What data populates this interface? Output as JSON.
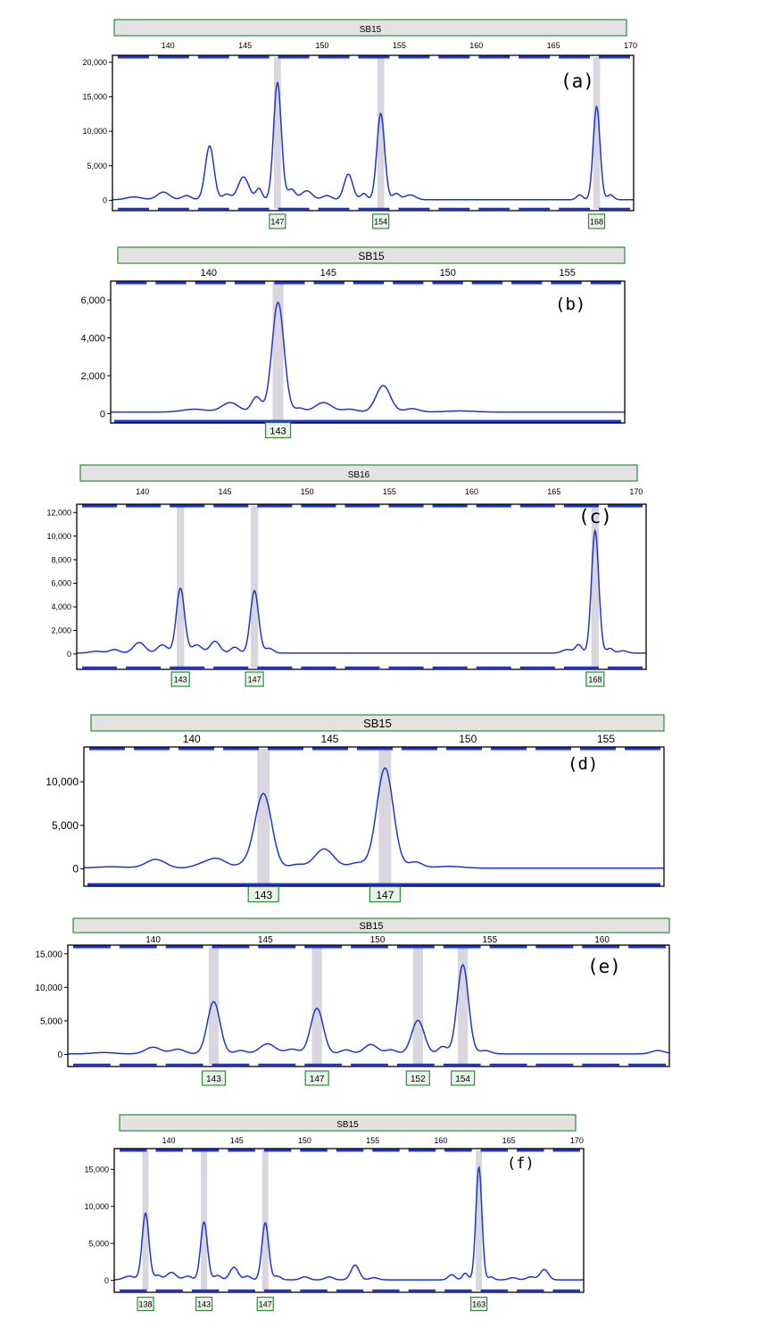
{
  "colors": {
    "trace": "#1f33d6",
    "bin_highlight": "#d9d6df",
    "locus_bar": "#e3e3e3",
    "locus_border": "#2e8b3c",
    "marker_box_border": "#2e8b3c",
    "marker_box_fill": "#e9f5e9",
    "bin_strip": "#1f33d6"
  },
  "chart_data": [
    {
      "type": "line",
      "panel_label": "(a)",
      "locus": "SB15",
      "x_ticks": [
        140,
        145,
        150,
        155,
        160,
        165,
        170
      ],
      "x_tick_labels": [
        "140",
        "145",
        "150",
        "155",
        "160",
        "165",
        "170"
      ],
      "y_ticks": [
        0,
        5000,
        10000,
        15000,
        20000
      ],
      "y_tick_labels": [
        "0",
        "5,000",
        "10,000",
        "15,000",
        "20,000"
      ],
      "xlim": [
        136.4,
        170.2
      ],
      "ylim": [
        -1500,
        21000
      ],
      "peaks": [
        {
          "x": 137.8,
          "y": 400,
          "w": 0.5
        },
        {
          "x": 139.7,
          "y": 1100,
          "w": 0.4
        },
        {
          "x": 141.2,
          "y": 600,
          "w": 0.3
        },
        {
          "x": 142.7,
          "y": 7800,
          "w": 0.28
        },
        {
          "x": 143.8,
          "y": 800,
          "w": 0.25
        },
        {
          "x": 144.9,
          "y": 3300,
          "w": 0.35
        },
        {
          "x": 145.9,
          "y": 1600,
          "w": 0.2
        },
        {
          "x": 147.1,
          "y": 17000,
          "w": 0.25
        },
        {
          "x": 148.0,
          "y": 1500,
          "w": 0.25
        },
        {
          "x": 149.0,
          "y": 1300,
          "w": 0.35
        },
        {
          "x": 150.3,
          "y": 600,
          "w": 0.3
        },
        {
          "x": 151.7,
          "y": 3700,
          "w": 0.28
        },
        {
          "x": 152.7,
          "y": 900,
          "w": 0.2
        },
        {
          "x": 153.8,
          "y": 12500,
          "w": 0.25
        },
        {
          "x": 154.8,
          "y": 900,
          "w": 0.22
        },
        {
          "x": 155.7,
          "y": 700,
          "w": 0.35
        },
        {
          "x": 166.7,
          "y": 700,
          "w": 0.2
        },
        {
          "x": 167.8,
          "y": 13500,
          "w": 0.22
        },
        {
          "x": 168.7,
          "y": 700,
          "w": 0.2
        }
      ],
      "called_alleles": [
        "147",
        "154",
        "168"
      ],
      "called_allele_x": [
        147.1,
        153.8,
        167.8
      ]
    },
    {
      "type": "line",
      "panel_label": "(b)",
      "locus": "SB15",
      "x_ticks": [
        140,
        145,
        150,
        155
      ],
      "x_tick_labels": [
        "140",
        "145",
        "150",
        "155"
      ],
      "y_ticks": [
        0,
        2000,
        4000,
        6000
      ],
      "y_tick_labels": [
        "0",
        "2,000",
        "4,000",
        "6,000"
      ],
      "xlim": [
        135.9,
        157.4
      ],
      "ylim": [
        -500,
        7000
      ],
      "peaks": [
        {
          "x": 139.4,
          "y": 150,
          "w": 0.5
        },
        {
          "x": 140.9,
          "y": 500,
          "w": 0.35
        },
        {
          "x": 142.0,
          "y": 800,
          "w": 0.2
        },
        {
          "x": 142.9,
          "y": 5800,
          "w": 0.25
        },
        {
          "x": 143.8,
          "y": 200,
          "w": 0.2
        },
        {
          "x": 144.8,
          "y": 500,
          "w": 0.35
        },
        {
          "x": 145.9,
          "y": 150,
          "w": 0.3
        },
        {
          "x": 147.3,
          "y": 1400,
          "w": 0.3
        },
        {
          "x": 148.5,
          "y": 180,
          "w": 0.3
        },
        {
          "x": 150.5,
          "y": 60,
          "w": 0.6
        }
      ],
      "called_alleles": [
        "143"
      ],
      "called_allele_x": [
        142.9
      ]
    },
    {
      "type": "line",
      "panel_label": "(c)",
      "locus": "SB16",
      "x_ticks": [
        140,
        145,
        150,
        155,
        160,
        165,
        170
      ],
      "x_tick_labels": [
        "140",
        "145",
        "150",
        "155",
        "160",
        "165",
        "170"
      ],
      "y_ticks": [
        0,
        2000,
        4000,
        6000,
        8000,
        10000,
        12000
      ],
      "y_tick_labels": [
        "0",
        "2,000",
        "4,000",
        "6,000",
        "8,000",
        "10,000",
        "12,000"
      ],
      "xlim": [
        136.0,
        170.6
      ],
      "ylim": [
        -1300,
        12700
      ],
      "peaks": [
        {
          "x": 137.2,
          "y": 150,
          "w": 0.4
        },
        {
          "x": 138.3,
          "y": 300,
          "w": 0.3
        },
        {
          "x": 139.8,
          "y": 900,
          "w": 0.35
        },
        {
          "x": 141.2,
          "y": 700,
          "w": 0.3
        },
        {
          "x": 142.3,
          "y": 5500,
          "w": 0.25
        },
        {
          "x": 143.3,
          "y": 700,
          "w": 0.3
        },
        {
          "x": 144.4,
          "y": 1000,
          "w": 0.3
        },
        {
          "x": 145.6,
          "y": 500,
          "w": 0.25
        },
        {
          "x": 146.8,
          "y": 5300,
          "w": 0.25
        },
        {
          "x": 147.7,
          "y": 400,
          "w": 0.25
        },
        {
          "x": 165.8,
          "y": 300,
          "w": 0.3
        },
        {
          "x": 166.5,
          "y": 700,
          "w": 0.2
        },
        {
          "x": 167.5,
          "y": 10400,
          "w": 0.22
        },
        {
          "x": 168.4,
          "y": 400,
          "w": 0.2
        },
        {
          "x": 169.2,
          "y": 200,
          "w": 0.25
        }
      ],
      "called_alleles": [
        "143",
        "147",
        "168"
      ],
      "called_allele_x": [
        142.3,
        146.8,
        167.5
      ]
    },
    {
      "type": "line",
      "panel_label": "(d)",
      "locus": "SB15",
      "x_ticks": [
        140,
        145,
        150,
        155
      ],
      "x_tick_labels": [
        "140",
        "145",
        "150",
        "155"
      ],
      "y_ticks": [
        0,
        5000,
        10000
      ],
      "y_tick_labels": [
        "0",
        "5,000",
        "10,000"
      ],
      "xlim": [
        136.1,
        157.1
      ],
      "ylim": [
        -2000,
        14000
      ],
      "peaks": [
        {
          "x": 137.1,
          "y": 150,
          "w": 0.6
        },
        {
          "x": 138.7,
          "y": 1000,
          "w": 0.35
        },
        {
          "x": 140.3,
          "y": 300,
          "w": 0.3
        },
        {
          "x": 140.9,
          "y": 1100,
          "w": 0.35
        },
        {
          "x": 142.0,
          "y": 500,
          "w": 0.3
        },
        {
          "x": 142.6,
          "y": 8500,
          "w": 0.3
        },
        {
          "x": 143.8,
          "y": 400,
          "w": 0.25
        },
        {
          "x": 144.8,
          "y": 2200,
          "w": 0.35
        },
        {
          "x": 146.0,
          "y": 600,
          "w": 0.3
        },
        {
          "x": 147.0,
          "y": 11500,
          "w": 0.3
        },
        {
          "x": 148.1,
          "y": 700,
          "w": 0.25
        },
        {
          "x": 149.3,
          "y": 200,
          "w": 0.5
        }
      ],
      "called_alleles": [
        "143",
        "147"
      ],
      "called_allele_x": [
        142.6,
        147.0
      ]
    },
    {
      "type": "line",
      "panel_label": "(e)",
      "locus": "SB15",
      "x_ticks": [
        140,
        145,
        150,
        155,
        160
      ],
      "x_tick_labels": [
        "140",
        "145",
        "150",
        "155",
        "160"
      ],
      "y_ticks": [
        0,
        5000,
        10000,
        15000
      ],
      "y_tick_labels": [
        "0",
        "5,000",
        "10,000",
        "15,000"
      ],
      "xlim": [
        136.2,
        163.0
      ],
      "ylim": [
        -1800,
        16300
      ],
      "peaks": [
        {
          "x": 137.8,
          "y": 200,
          "w": 0.5
        },
        {
          "x": 140.0,
          "y": 1000,
          "w": 0.35
        },
        {
          "x": 141.1,
          "y": 700,
          "w": 0.3
        },
        {
          "x": 142.7,
          "y": 7800,
          "w": 0.28
        },
        {
          "x": 143.9,
          "y": 500,
          "w": 0.25
        },
        {
          "x": 145.1,
          "y": 1500,
          "w": 0.35
        },
        {
          "x": 146.2,
          "y": 700,
          "w": 0.3
        },
        {
          "x": 147.3,
          "y": 6800,
          "w": 0.28
        },
        {
          "x": 148.6,
          "y": 600,
          "w": 0.25
        },
        {
          "x": 149.7,
          "y": 1400,
          "w": 0.3
        },
        {
          "x": 150.6,
          "y": 600,
          "w": 0.25
        },
        {
          "x": 151.8,
          "y": 5000,
          "w": 0.28
        },
        {
          "x": 152.9,
          "y": 1100,
          "w": 0.2
        },
        {
          "x": 153.8,
          "y": 13300,
          "w": 0.25
        },
        {
          "x": 154.8,
          "y": 500,
          "w": 0.25
        },
        {
          "x": 162.5,
          "y": 500,
          "w": 0.3
        }
      ],
      "called_alleles": [
        "143",
        "147",
        "152",
        "154"
      ],
      "called_allele_x": [
        142.7,
        147.3,
        151.8,
        153.8
      ]
    },
    {
      "type": "line",
      "panel_label": "(f)",
      "locus": "SB15",
      "x_ticks": [
        140,
        145,
        150,
        155,
        160,
        165,
        170
      ],
      "x_tick_labels": [
        "140",
        "145",
        "150",
        "155",
        "160",
        "165",
        "170"
      ],
      "y_ticks": [
        0,
        5000,
        10000,
        15000
      ],
      "y_tick_labels": [
        "0",
        "5,000",
        "10,000",
        "15,000"
      ],
      "xlim": [
        136.0,
        170.5
      ],
      "ylim": [
        -1600,
        17800
      ],
      "peaks": [
        {
          "x": 137.1,
          "y": 500,
          "w": 0.4
        },
        {
          "x": 138.3,
          "y": 9000,
          "w": 0.25
        },
        {
          "x": 139.2,
          "y": 600,
          "w": 0.25
        },
        {
          "x": 140.2,
          "y": 1000,
          "w": 0.35
        },
        {
          "x": 141.4,
          "y": 500,
          "w": 0.3
        },
        {
          "x": 142.6,
          "y": 7800,
          "w": 0.25
        },
        {
          "x": 143.6,
          "y": 600,
          "w": 0.25
        },
        {
          "x": 144.8,
          "y": 1700,
          "w": 0.3
        },
        {
          "x": 145.8,
          "y": 500,
          "w": 0.25
        },
        {
          "x": 147.1,
          "y": 7700,
          "w": 0.25
        },
        {
          "x": 148.0,
          "y": 500,
          "w": 0.25
        },
        {
          "x": 150.0,
          "y": 400,
          "w": 0.3
        },
        {
          "x": 151.8,
          "y": 400,
          "w": 0.3
        },
        {
          "x": 153.7,
          "y": 2000,
          "w": 0.3
        },
        {
          "x": 155.1,
          "y": 300,
          "w": 0.3
        },
        {
          "x": 160.8,
          "y": 700,
          "w": 0.25
        },
        {
          "x": 161.8,
          "y": 900,
          "w": 0.2
        },
        {
          "x": 162.8,
          "y": 15200,
          "w": 0.22
        },
        {
          "x": 163.7,
          "y": 400,
          "w": 0.2
        },
        {
          "x": 165.3,
          "y": 300,
          "w": 0.3
        },
        {
          "x": 166.6,
          "y": 400,
          "w": 0.3
        },
        {
          "x": 167.6,
          "y": 1400,
          "w": 0.3
        }
      ],
      "called_alleles": [
        "138",
        "143",
        "147",
        "163"
      ],
      "called_allele_x": [
        138.3,
        142.6,
        147.1,
        162.8
      ]
    }
  ]
}
